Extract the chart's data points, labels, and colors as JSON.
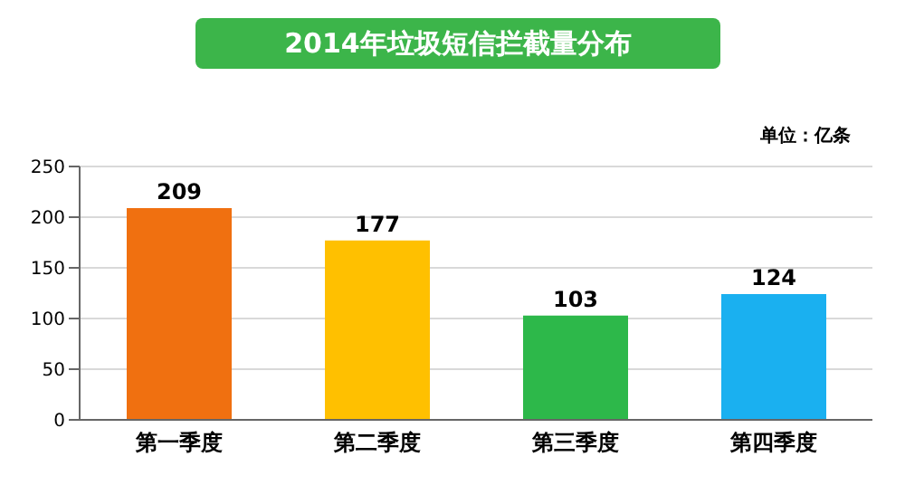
{
  "chart_data": {
    "type": "bar",
    "title": "2014年垃圾短信拦截量分布",
    "annotations": [
      "单位：亿条"
    ],
    "categories": [
      "第一季度",
      "第二季度",
      "第三季度",
      "第四季度"
    ],
    "values": [
      209,
      177,
      103,
      124
    ],
    "colors": [
      "#f07010",
      "#ffc000",
      "#2db84a",
      "#1ab0f0"
    ],
    "ylim": [
      0,
      250
    ],
    "yticks": [
      0,
      50,
      100,
      150,
      200,
      250
    ],
    "grid": "y",
    "data_labels": true
  }
}
